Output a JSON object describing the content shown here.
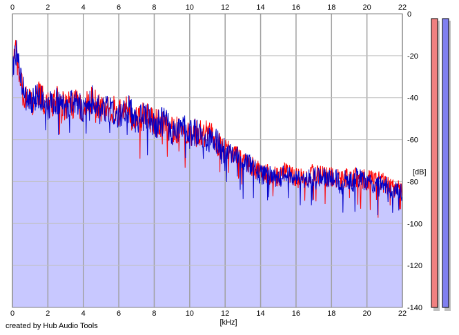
{
  "credit": "created by Hub Audio Tools",
  "chart_data": {
    "type": "area",
    "xlabel": "[kHz]",
    "ylabel": "[dB]",
    "xlim": [
      0,
      22
    ],
    "ylim": [
      -140,
      0
    ],
    "x_ticks": [
      0,
      2,
      4,
      6,
      8,
      10,
      12,
      14,
      16,
      18,
      20,
      22
    ],
    "y_ticks": [
      0,
      -20,
      -40,
      -60,
      -80,
      -100,
      -120,
      -140
    ],
    "y_tick_labels": [
      "0",
      "-20",
      "-40",
      "-60",
      "-80",
      "-100",
      "-120",
      "-140"
    ],
    "grid": true,
    "fill_color": "#c8c8ff",
    "series": [
      {
        "color": "#ff0000",
        "x": [
          0.0,
          0.2,
          0.5,
          0.8,
          1.0,
          1.5,
          2.0,
          2.5,
          3.0,
          3.5,
          4.0,
          4.5,
          5.0,
          5.5,
          6.0,
          6.5,
          7.0,
          7.5,
          8.0,
          8.5,
          9.0,
          9.5,
          10.0,
          10.5,
          11.0,
          11.5,
          12.0,
          12.5,
          13.0,
          13.5,
          14.0,
          14.5,
          15.0,
          15.5,
          16.0,
          16.5,
          17.0,
          17.5,
          18.0,
          18.5,
          19.0,
          19.5,
          20.0,
          20.5,
          21.0,
          21.5,
          22.0
        ],
        "values": [
          -25,
          -18,
          -33,
          -40,
          -42,
          -38,
          -43,
          -40,
          -44,
          -42,
          -44,
          -40,
          -45,
          -44,
          -47,
          -44,
          -50,
          -48,
          -52,
          -50,
          -55,
          -54,
          -57,
          -56,
          -57,
          -60,
          -64,
          -66,
          -70,
          -72,
          -75,
          -76,
          -77,
          -75,
          -78,
          -77,
          -76,
          -77,
          -77,
          -78,
          -78,
          -77,
          -79,
          -79,
          -80,
          -83,
          -84
        ]
      },
      {
        "color": "#0000c8",
        "x": [
          0.0,
          0.2,
          0.5,
          0.8,
          1.0,
          1.5,
          2.0,
          2.5,
          3.0,
          3.5,
          4.0,
          4.5,
          5.0,
          5.5,
          6.0,
          6.5,
          7.0,
          7.5,
          8.0,
          8.5,
          9.0,
          9.5,
          10.0,
          10.5,
          11.0,
          11.5,
          12.0,
          12.5,
          13.0,
          13.5,
          14.0,
          14.5,
          15.0,
          15.5,
          16.0,
          16.5,
          17.0,
          17.5,
          18.0,
          18.5,
          19.0,
          19.5,
          20.0,
          20.5,
          21.0,
          21.5,
          22.0
        ],
        "values": [
          -25,
          -16,
          -33,
          -40,
          -43,
          -38,
          -43,
          -40,
          -44,
          -42,
          -45,
          -40,
          -46,
          -44,
          -47,
          -44,
          -50,
          -48,
          -52,
          -50,
          -55,
          -53,
          -57,
          -55,
          -58,
          -60,
          -65,
          -66,
          -70,
          -72,
          -76,
          -77,
          -78,
          -76,
          -79,
          -78,
          -77,
          -78,
          -78,
          -79,
          -79,
          -78,
          -80,
          -80,
          -81,
          -84,
          -85
        ]
      }
    ],
    "level_meters": [
      {
        "channel": "left",
        "color": "#f08080",
        "value": 1.0
      },
      {
        "channel": "right",
        "color": "#8080f0",
        "value": 1.0
      }
    ]
  }
}
